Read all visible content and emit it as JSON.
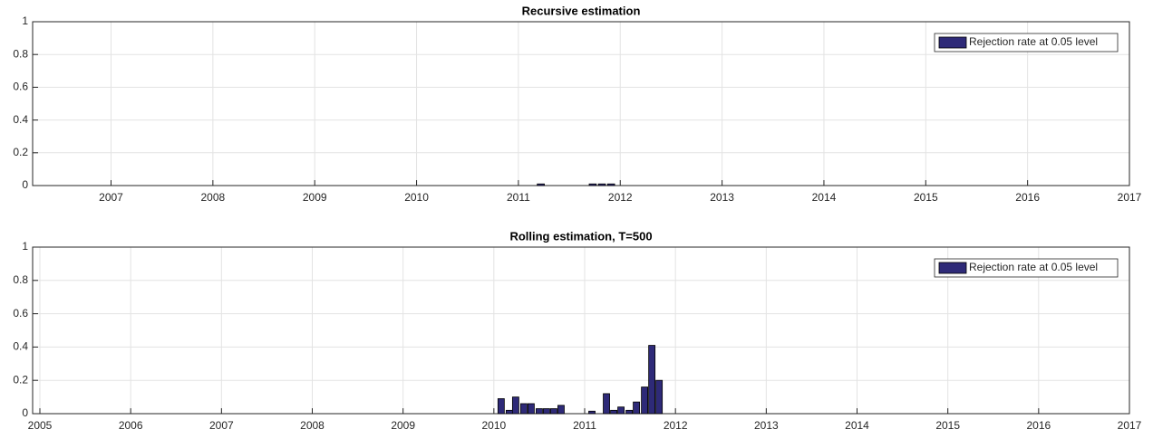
{
  "chart_data": [
    {
      "type": "bar",
      "title": "Recursive estimation",
      "x": [
        2011.22,
        2011.73,
        2011.82,
        2011.91
      ],
      "series": [
        {
          "name": "Rejection rate at 0.05 level",
          "color": "#2e2a78",
          "values": [
            0.01,
            0.01,
            0.01,
            0.01
          ]
        }
      ],
      "xlim": [
        2006.23,
        2017
      ],
      "xticks": [
        2007,
        2008,
        2009,
        2010,
        2011,
        2012,
        2013,
        2014,
        2015,
        2016,
        2017
      ],
      "ylim": [
        0,
        1
      ],
      "yticks": [
        0,
        0.2,
        0.4,
        0.6,
        0.8,
        1
      ],
      "grid": true,
      "legend": "northeast"
    },
    {
      "type": "bar",
      "title": "Rolling estimation, T=500",
      "x": [
        2010.08,
        2010.17,
        2010.24,
        2010.33,
        2010.41,
        2010.5,
        2010.58,
        2010.66,
        2010.74,
        2011.08,
        2011.24,
        2011.32,
        2011.4,
        2011.49,
        2011.57,
        2011.66,
        2011.74,
        2011.82
      ],
      "series": [
        {
          "name": "Rejection rate at 0.05 level",
          "color": "#2e2a78",
          "values": [
            0.09,
            0.02,
            0.1,
            0.06,
            0.06,
            0.03,
            0.03,
            0.03,
            0.05,
            0.015,
            0.12,
            0.02,
            0.04,
            0.02,
            0.07,
            0.16,
            0.41,
            0.2
          ]
        }
      ],
      "xlim": [
        2004.92,
        2017
      ],
      "xticks": [
        2005,
        2006,
        2007,
        2008,
        2009,
        2010,
        2011,
        2012,
        2013,
        2014,
        2015,
        2016,
        2017
      ],
      "ylim": [
        0,
        1
      ],
      "yticks": [
        0,
        0.2,
        0.4,
        0.6,
        0.8,
        1
      ],
      "grid": true,
      "legend": "northeast"
    }
  ]
}
